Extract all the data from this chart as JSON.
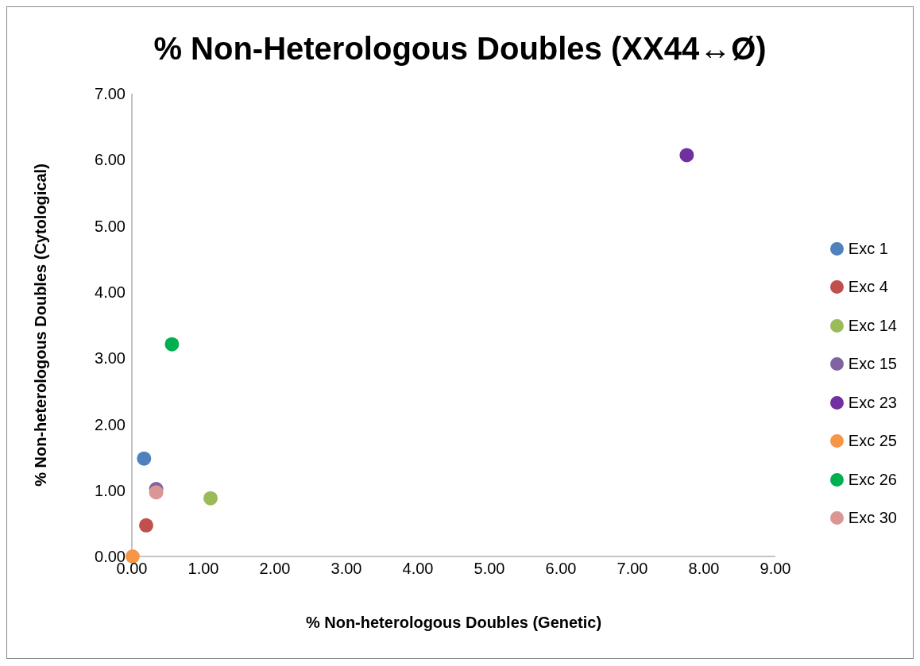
{
  "chart_data": {
    "type": "scatter",
    "title": "% Non-Heterologous Doubles (XX44↔Ø)",
    "xlabel": "% Non-heterologous Doubles (Genetic)",
    "ylabel": "% Non-heterologous Doubles (Cytological)",
    "xlim": [
      0,
      9
    ],
    "ylim": [
      0,
      7
    ],
    "xticks": [
      {
        "value": 0,
        "label": "0.00"
      },
      {
        "value": 1,
        "label": "1.00"
      },
      {
        "value": 2,
        "label": "2.00"
      },
      {
        "value": 3,
        "label": "3.00"
      },
      {
        "value": 4,
        "label": "4.00"
      },
      {
        "value": 5,
        "label": "5.00"
      },
      {
        "value": 6,
        "label": "6.00"
      },
      {
        "value": 7,
        "label": "7.00"
      },
      {
        "value": 8,
        "label": "8.00"
      },
      {
        "value": 9,
        "label": "9.00"
      }
    ],
    "yticks": [
      {
        "value": 0,
        "label": "0.00"
      },
      {
        "value": 1,
        "label": "1.00"
      },
      {
        "value": 2,
        "label": "2.00"
      },
      {
        "value": 3,
        "label": "3.00"
      },
      {
        "value": 4,
        "label": "4.00"
      },
      {
        "value": 5,
        "label": "5.00"
      },
      {
        "value": 6,
        "label": "6.00"
      },
      {
        "value": 7,
        "label": "7.00"
      }
    ],
    "grid": false,
    "legend": "right",
    "marker": "circle",
    "series": [
      {
        "name": "Exc 1",
        "color": "#4f81bd",
        "x": [
          0.17
        ],
        "values": [
          1.48
        ]
      },
      {
        "name": "Exc 4",
        "color": "#c0504d",
        "x": [
          0.2
        ],
        "values": [
          0.47
        ]
      },
      {
        "name": "Exc 14",
        "color": "#9bbb59",
        "x": [
          1.1
        ],
        "values": [
          0.88
        ]
      },
      {
        "name": "Exc 15",
        "color": "#8064a2",
        "x": [
          0.34
        ],
        "values": [
          1.02
        ]
      },
      {
        "name": "Exc 23",
        "color": "#7030a0",
        "x": [
          7.76
        ],
        "values": [
          6.07
        ]
      },
      {
        "name": "Exc 25",
        "color": "#f79646",
        "x": [
          0.01
        ],
        "values": [
          0.0
        ]
      },
      {
        "name": "Exc 26",
        "color": "#00b050",
        "x": [
          0.56
        ],
        "values": [
          3.21
        ]
      },
      {
        "name": "Exc 30",
        "color": "#d99694",
        "x": [
          0.34
        ],
        "values": [
          0.97
        ]
      }
    ]
  }
}
